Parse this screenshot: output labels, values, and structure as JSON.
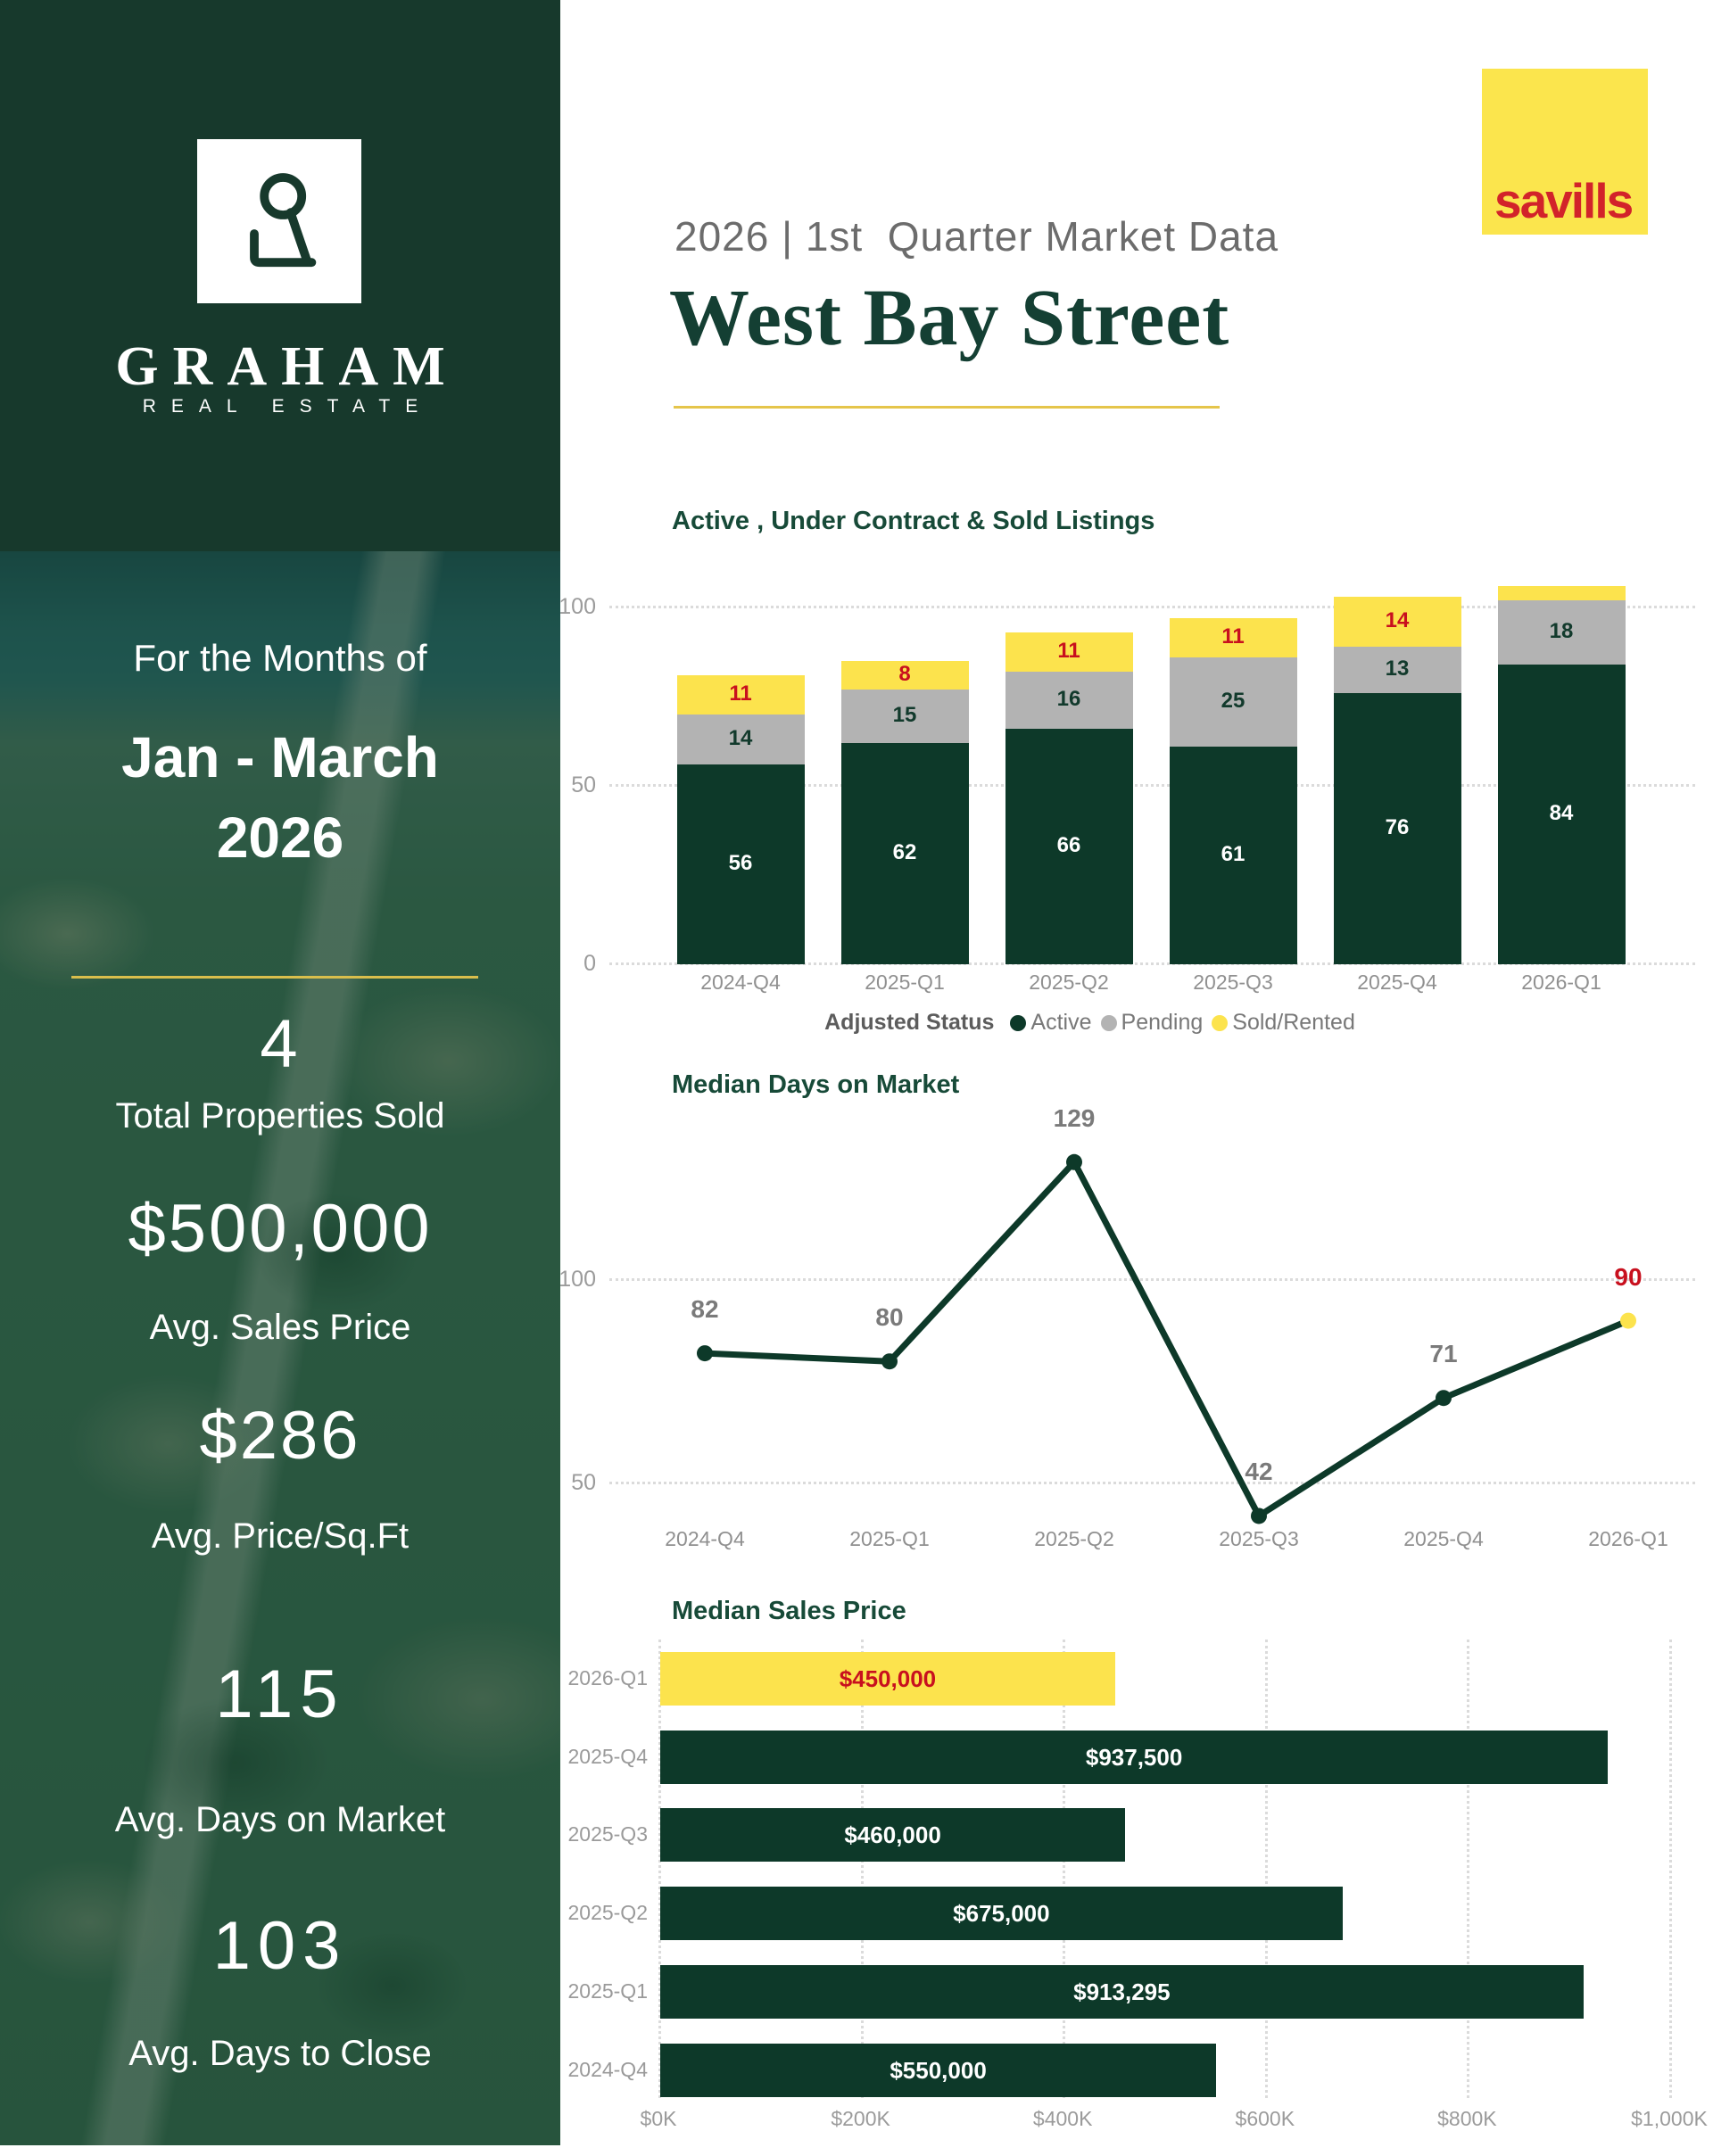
{
  "brand": {
    "logo_text": "GRAHAM",
    "logo_subtext": "REAL ESTATE",
    "partner": "savills"
  },
  "header": {
    "subtitle": "2026 | 1st  Quarter Market Data",
    "title": "West Bay Street"
  },
  "sidebar": {
    "period_label": "For the Months of",
    "period_months": "Jan - March",
    "period_year": "2026",
    "stats": [
      {
        "value": "4",
        "label": "Total Properties Sold"
      },
      {
        "value": "$500,000",
        "label": "Avg. Sales Price"
      },
      {
        "value": "$286",
        "label": "Avg. Price/Sq.Ft"
      },
      {
        "value": "115",
        "label": "Avg. Days on Market"
      },
      {
        "value": "103",
        "label": "Avg. Days to Close"
      }
    ]
  },
  "colors": {
    "dark_green": "#0D3929",
    "sidebar_green": "#17392C",
    "title_green": "#174A38",
    "gray_segment": "#B3B3B3",
    "yellow": "#FCE34D",
    "red": "#C8101E",
    "axis_gray": "#9B9B9B",
    "label_gray": "#7A7A7A",
    "savills_yellow": "#FBE54D",
    "savills_red": "#D2232A",
    "gold_line": "#E5C54B"
  },
  "chart_data": [
    {
      "type": "bar",
      "stacked": true,
      "title": "Active , Under Contract & Sold Listings",
      "categories": [
        "2024-Q4",
        "2025-Q1",
        "2025-Q2",
        "2025-Q3",
        "2025-Q4",
        "2026-Q1"
      ],
      "series": [
        {
          "name": "Active",
          "color": "#0D3929",
          "label_color": "#FFFFFF",
          "values": [
            56,
            62,
            66,
            61,
            76,
            84
          ]
        },
        {
          "name": "Pending",
          "color": "#B3B3B3",
          "label_color": "#123A2C",
          "values": [
            14,
            15,
            16,
            25,
            13,
            18
          ]
        },
        {
          "name": "Sold/Rented",
          "color": "#FCE34D",
          "label_color": "#C8101E",
          "values": [
            11,
            8,
            11,
            11,
            14,
            4
          ]
        }
      ],
      "legend_title": "Adjusted Status",
      "ylim": [
        0,
        100
      ],
      "yticks": [
        100,
        50,
        0
      ],
      "grid": "dotted-horizontal",
      "legend_position": "bottom-center"
    },
    {
      "type": "line",
      "title": "Median Days on Market",
      "categories": [
        "2024-Q4",
        "2025-Q1",
        "2025-Q2",
        "2025-Q3",
        "2025-Q4",
        "2026-Q1"
      ],
      "values": [
        82,
        80,
        129,
        42,
        71,
        90
      ],
      "yticks": [
        100,
        50
      ],
      "line_color": "#0D3929",
      "label_color": "#7A7A7A",
      "highlight_last": {
        "marker_color": "#FCE34D",
        "label_color": "#C8101E"
      },
      "grid": "dotted-horizontal"
    },
    {
      "type": "bar-horizontal",
      "title": "Median Sales Price",
      "categories": [
        "2026-Q1",
        "2025-Q4",
        "2025-Q3",
        "2025-Q2",
        "2025-Q1",
        "2024-Q4"
      ],
      "values": [
        450000,
        937500,
        460000,
        675000,
        913295,
        550000
      ],
      "value_labels": [
        "$450,000",
        "$937,500",
        "$460,000",
        "$675,000",
        "$913,295",
        "$550,000"
      ],
      "bar_colors": [
        "#FCE34D",
        "#0D3929",
        "#0D3929",
        "#0D3929",
        "#0D3929",
        "#0D3929"
      ],
      "value_label_colors": [
        "#C8101E",
        "#FFFFFF",
        "#FFFFFF",
        "#FFFFFF",
        "#FFFFFF",
        "#FFFFFF"
      ],
      "xticks": [
        "$0K",
        "$200K",
        "$400K",
        "$600K",
        "$800K",
        "$1,000K"
      ],
      "xlim": [
        0,
        1000000
      ],
      "grid": "dotted-vertical"
    }
  ]
}
